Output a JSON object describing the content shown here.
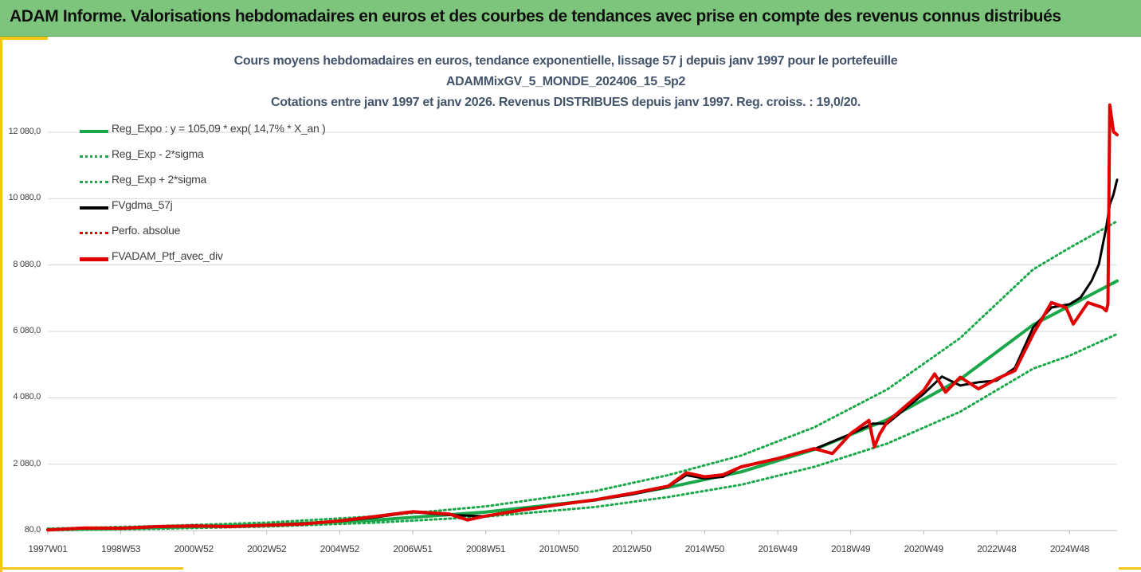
{
  "banner": {
    "title": "ADAM Informe. Valorisations hebdomadaires en euros et des courbes de tendances avec prise en compte des revenus connus distribués"
  },
  "colors": {
    "banner_bg": "#7dc57d",
    "accent": "#f5c518",
    "reg_green": "#1aa84a",
    "sigma_green": "#1aa84a",
    "fv_black": "#000000",
    "perf_red": "#e00000",
    "ptf_red": "#e00000",
    "gridline": "#d9d9d9",
    "title_color": "#44546a"
  },
  "chart_data": {
    "type": "line",
    "title": [
      "Cours moyens hebdomadaires  en euros, tendance exponentielle, lissage 57 j depuis janv 1997 pour le portefeuille",
      "ADAMMixGV_5_MONDE_202406_15_5p2",
      "Cotations entre janv 1997 et janv 2026. Revenus DISTRIBUES depuis janv 1997. Reg. croiss. : 19,0/20."
    ],
    "xlabel": "",
    "ylabel": "",
    "xlim": [
      1997.0,
      2026.3
    ],
    "ylim": [
      80,
      12080
    ],
    "y_ticks": [
      80,
      2080,
      4080,
      6080,
      8080,
      10080,
      12080
    ],
    "y_tick_labels": [
      "80,0",
      "2 080,0",
      "4 080,0",
      "6 080,0",
      "8 080,0",
      "10 080,0",
      "12 080,0"
    ],
    "x_ticks": [
      1997.0,
      1999.0,
      2001.0,
      2003.0,
      2005.0,
      2007.0,
      2009.0,
      2011.0,
      2013.0,
      2015.0,
      2017.0,
      2019.0,
      2021.0,
      2023.0,
      2025.0
    ],
    "x_tick_labels": [
      "1997W01",
      "1998W53",
      "2000W52",
      "2002W52",
      "2004W52",
      "2006W51",
      "2008W51",
      "2010W50",
      "2012W50",
      "2014W50",
      "2016W49",
      "2018W49",
      "2020W49",
      "2022W48",
      "2024W48"
    ],
    "gridlines": "horizontal",
    "legend_position": "top-left",
    "series": [
      {
        "name": "Reg_Expo : y = 105,09 * exp( 14,7% *  X_an )",
        "style": "solid-green",
        "x": [
          1997.0,
          2000.0,
          2003.0,
          2006.0,
          2009.0,
          2012.0,
          2014.0,
          2016.0,
          2018.0,
          2020.0,
          2022.0,
          2024.0,
          2025.0,
          2026.3
        ],
        "values": [
          110,
          170,
          250,
          400,
          640,
          1000,
          1380,
          1850,
          2520,
          3420,
          4640,
          6280,
          6850,
          7600
        ]
      },
      {
        "name": "Reg_Exp - 2*sigma",
        "style": "dotted-green",
        "x": [
          1997.0,
          2000.0,
          2003.0,
          2006.0,
          2009.0,
          2012.0,
          2014.0,
          2016.0,
          2018.0,
          2020.0,
          2022.0,
          2024.0,
          2025.0,
          2026.3
        ],
        "values": [
          88,
          135,
          200,
          320,
          500,
          790,
          1090,
          1460,
          2000,
          2700,
          3660,
          4960,
          5350,
          6000
        ]
      },
      {
        "name": "Reg_Exp + 2*sigma",
        "style": "dotted-green",
        "x": [
          1997.0,
          2000.0,
          2003.0,
          2006.0,
          2009.0,
          2012.0,
          2014.0,
          2016.0,
          2018.0,
          2020.0,
          2022.0,
          2024.0,
          2025.0,
          2026.3
        ],
        "values": [
          140,
          215,
          320,
          510,
          810,
          1270,
          1750,
          2340,
          3190,
          4330,
          5880,
          7950,
          8600,
          9400
        ]
      },
      {
        "name": "FVgdma_57j",
        "style": "solid-black",
        "x": [
          1997.0,
          1998.0,
          1999.0,
          2000.0,
          2001.0,
          2002.0,
          2003.0,
          2004.0,
          2005.0,
          2006.0,
          2007.0,
          2008.0,
          2009.0,
          2010.0,
          2011.0,
          2012.0,
          2013.0,
          2014.0,
          2014.5,
          2015.0,
          2015.5,
          2016.0,
          2017.0,
          2018.0,
          2019.0,
          2019.6,
          2020.0,
          2021.0,
          2021.5,
          2022.0,
          2022.5,
          2023.0,
          2023.5,
          2024.0,
          2024.5,
          2025.0,
          2025.3,
          2025.6,
          2025.8,
          2026.0,
          2026.1,
          2026.2,
          2026.3
        ],
        "values": [
          100,
          150,
          160,
          190,
          230,
          210,
          240,
          290,
          360,
          480,
          640,
          550,
          510,
          720,
          860,
          1000,
          1170,
          1400,
          1750,
          1650,
          1700,
          2000,
          2250,
          2530,
          2990,
          3300,
          3300,
          4200,
          4720,
          4450,
          4550,
          4600,
          4980,
          6200,
          6800,
          6900,
          7100,
          7600,
          8100,
          9200,
          9900,
          10200,
          10650
        ]
      },
      {
        "name": "Perfo. absolue",
        "style": "dotted-red",
        "x": [
          1997.0,
          1998.0,
          1999.0,
          2000.0,
          2001.0,
          2002.0,
          2003.0,
          2004.0,
          2005.0,
          2006.0,
          2007.0,
          2008.0,
          2008.5,
          2009.0,
          2010.0,
          2011.0,
          2012.0,
          2013.0,
          2014.0,
          2014.5,
          2015.0,
          2015.5,
          2016.0,
          2017.0,
          2018.0,
          2018.5,
          2019.0,
          2019.5,
          2019.65,
          2019.8,
          2020.0,
          2021.0,
          2021.3,
          2021.6,
          2022.0,
          2022.5,
          2023.0,
          2023.5,
          2024.0,
          2024.5,
          2024.9,
          2025.1,
          2025.5,
          2025.9,
          2026.0,
          2026.05,
          2026.1,
          2026.2,
          2026.3
        ],
        "values": [
          100,
          160,
          150,
          200,
          220,
          200,
          240,
          280,
          370,
          510,
          650,
          580,
          400,
          520,
          700,
          860,
          1010,
          1200,
          1420,
          1820,
          1700,
          1760,
          2000,
          2250,
          2550,
          2400,
          3000,
          3400,
          2600,
          3000,
          3350,
          4300,
          4800,
          4250,
          4700,
          4350,
          4650,
          4900,
          6000,
          6950,
          6800,
          6300,
          6950,
          6800,
          6700,
          6900,
          12900,
          12100,
          12000
        ]
      },
      {
        "name": "FVADAM_Ptf_avec_div",
        "style": "solid-red",
        "x": [
          1997.0,
          1998.0,
          1999.0,
          2000.0,
          2001.0,
          2002.0,
          2003.0,
          2004.0,
          2005.0,
          2006.0,
          2007.0,
          2008.0,
          2008.5,
          2009.0,
          2010.0,
          2011.0,
          2012.0,
          2013.0,
          2014.0,
          2014.5,
          2015.0,
          2015.5,
          2016.0,
          2017.0,
          2018.0,
          2018.5,
          2019.0,
          2019.5,
          2019.65,
          2019.8,
          2020.0,
          2021.0,
          2021.3,
          2021.6,
          2022.0,
          2022.5,
          2023.0,
          2023.5,
          2024.0,
          2024.5,
          2024.9,
          2025.1,
          2025.5,
          2025.9,
          2026.0,
          2026.05,
          2026.1,
          2026.2,
          2026.3
        ],
        "values": [
          100,
          160,
          150,
          200,
          220,
          200,
          240,
          280,
          370,
          510,
          650,
          580,
          400,
          520,
          700,
          860,
          1010,
          1200,
          1420,
          1820,
          1700,
          1760,
          2000,
          2250,
          2550,
          2400,
          3000,
          3400,
          2600,
          3000,
          3350,
          4300,
          4800,
          4250,
          4700,
          4350,
          4650,
          4900,
          6000,
          6950,
          6800,
          6300,
          6950,
          6800,
          6700,
          6900,
          12900,
          12100,
          12000
        ]
      }
    ]
  }
}
